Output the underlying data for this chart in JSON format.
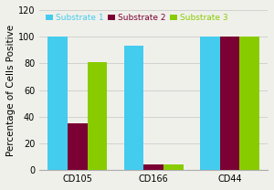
{
  "categories": [
    "CD105",
    "CD166",
    "CD44"
  ],
  "series": [
    {
      "label": "Substrate 1",
      "values": [
        100,
        93,
        100
      ],
      "color": "#44CCEE"
    },
    {
      "label": "Substrate 2",
      "values": [
        35,
        4,
        100
      ],
      "color": "#7B0033"
    },
    {
      "label": "Substrate 3",
      "values": [
        81,
        4,
        100
      ],
      "color": "#88CC00"
    }
  ],
  "ylabel": "Percentage of Cells Positive",
  "ylim": [
    0,
    120
  ],
  "yticks": [
    0,
    20,
    40,
    60,
    80,
    100,
    120
  ],
  "background_color": "#f0f0eb",
  "grid_color": "#cccccc",
  "bar_width": 0.26,
  "legend_fontsize": 6.5,
  "axis_label_fontsize": 7.5,
  "tick_fontsize": 7
}
